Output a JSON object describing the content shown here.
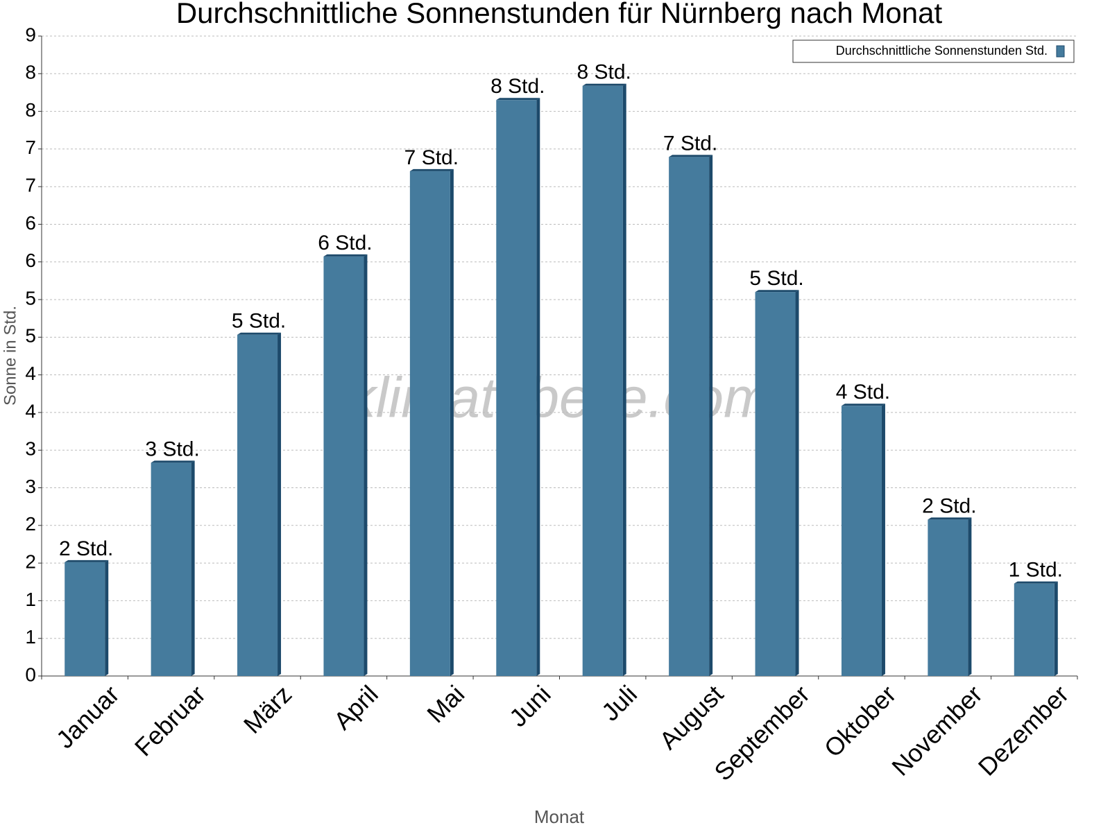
{
  "chart_data": {
    "type": "bar",
    "title": "Durchschnittliche Sonnenstunden für Nürnberg nach Monat",
    "x_label": "Monat",
    "y_label": "Sonne in Std.",
    "watermark": "klimatabelle.com",
    "categories": [
      "Januar",
      "Februar",
      "März",
      "April",
      "Mai",
      "Juni",
      "Juli",
      "August",
      "September",
      "Oktober",
      "November",
      "Dezember"
    ],
    "series": [
      {
        "name": "Durchschnittliche Sonnenstunden Std.",
        "color": "#457b9d",
        "values": [
          1.6,
          3.0,
          4.8,
          5.9,
          7.1,
          8.1,
          8.3,
          7.3,
          5.4,
          3.8,
          2.2,
          1.3
        ],
        "value_labels": [
          "2 Std.",
          "3 Std.",
          "5 Std.",
          "6 Std.",
          "7 Std.",
          "8 Std.",
          "8 Std.",
          "7 Std.",
          "5 Std.",
          "4 Std.",
          "2 Std.",
          "1 Std."
        ]
      }
    ],
    "ylim": [
      0,
      9
    ],
    "yticks": [
      0,
      {
        "value": 0.529,
        "label": "1"
      },
      {
        "value": 1.059,
        "label": "1"
      },
      {
        "value": 1.588,
        "label": "2"
      },
      {
        "value": 2.118,
        "label": "2"
      },
      {
        "value": 2.647,
        "label": "3"
      },
      {
        "value": 3.176,
        "label": "3"
      },
      {
        "value": 3.706,
        "label": "4"
      },
      {
        "value": 4.235,
        "label": "4"
      },
      {
        "value": 4.765,
        "label": "5"
      },
      {
        "value": 5.294,
        "label": "5"
      },
      {
        "value": 5.824,
        "label": "6"
      },
      {
        "value": 6.353,
        "label": "6"
      },
      {
        "value": 6.882,
        "label": "7"
      },
      {
        "value": 7.412,
        "label": "7"
      },
      {
        "value": 7.941,
        "label": "8"
      },
      {
        "value": 8.471,
        "label": "8"
      },
      9
    ],
    "grid": true,
    "legend": "top-right"
  }
}
